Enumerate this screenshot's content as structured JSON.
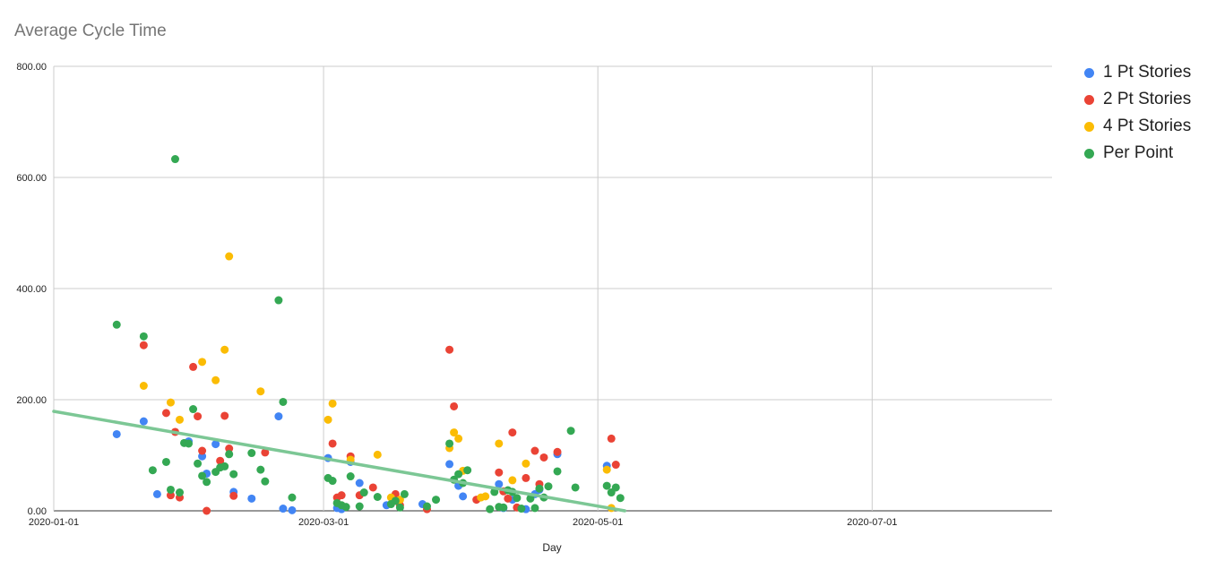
{
  "chart_data": {
    "type": "scatter",
    "title": "Average Cycle Time",
    "xlabel": "Day",
    "ylabel": "",
    "x_ticks": [
      "2020-01-01",
      "2020-03-01",
      "2020-05-01",
      "2020-07-01"
    ],
    "xlim": [
      "2020-01-01",
      "2020-08-10"
    ],
    "y_ticks": [
      "0.00",
      "200.00",
      "400.00",
      "600.00",
      "800.00"
    ],
    "ylim": [
      0,
      800
    ],
    "grid": true,
    "legend_position": "right",
    "trendline": {
      "series": "Per Point",
      "color": "#7cc795",
      "points": [
        [
          "2020-01-01",
          179
        ],
        [
          "2020-05-07",
          0
        ]
      ]
    },
    "series": [
      {
        "name": "1 Pt Stories",
        "color": "#4285f4",
        "points": [
          [
            "2020-01-15",
            138
          ],
          [
            "2020-01-21",
            161
          ],
          [
            "2020-01-24",
            30
          ],
          [
            "2020-01-31",
            125
          ],
          [
            "2020-02-03",
            98
          ],
          [
            "2020-02-04",
            67
          ],
          [
            "2020-02-06",
            120
          ],
          [
            "2020-02-10",
            34
          ],
          [
            "2020-02-14",
            22
          ],
          [
            "2020-02-20",
            170
          ],
          [
            "2020-02-21",
            4
          ],
          [
            "2020-02-23",
            1
          ],
          [
            "2020-03-02",
            95
          ],
          [
            "2020-03-04",
            5
          ],
          [
            "2020-03-05",
            3
          ],
          [
            "2020-03-07",
            88
          ],
          [
            "2020-03-09",
            50
          ],
          [
            "2020-03-15",
            10
          ],
          [
            "2020-03-23",
            12
          ],
          [
            "2020-03-29",
            84
          ],
          [
            "2020-03-31",
            45
          ],
          [
            "2020-04-01",
            26
          ],
          [
            "2020-04-09",
            48
          ],
          [
            "2020-04-10",
            5
          ],
          [
            "2020-04-12",
            20
          ],
          [
            "2020-04-15",
            3
          ],
          [
            "2020-04-17",
            30
          ],
          [
            "2020-04-18",
            38
          ],
          [
            "2020-04-22",
            102
          ],
          [
            "2020-05-03",
            81
          ]
        ]
      },
      {
        "name": "2 Pt Stories",
        "color": "#ea4335",
        "points": [
          [
            "2020-01-21",
            298
          ],
          [
            "2020-01-26",
            176
          ],
          [
            "2020-01-27",
            28
          ],
          [
            "2020-01-28",
            142
          ],
          [
            "2020-01-29",
            24
          ],
          [
            "2020-02-01",
            259
          ],
          [
            "2020-02-02",
            170
          ],
          [
            "2020-02-03",
            108
          ],
          [
            "2020-02-04",
            0
          ],
          [
            "2020-02-07",
            90
          ],
          [
            "2020-02-08",
            171
          ],
          [
            "2020-02-09",
            112
          ],
          [
            "2020-02-10",
            27
          ],
          [
            "2020-02-17",
            105
          ],
          [
            "2020-03-03",
            121
          ],
          [
            "2020-03-04",
            24
          ],
          [
            "2020-03-05",
            28
          ],
          [
            "2020-03-07",
            98
          ],
          [
            "2020-03-09",
            28
          ],
          [
            "2020-03-12",
            42
          ],
          [
            "2020-03-17",
            30
          ],
          [
            "2020-03-18",
            10
          ],
          [
            "2020-03-24",
            3
          ],
          [
            "2020-03-29",
            290
          ],
          [
            "2020-03-30",
            188
          ],
          [
            "2020-04-04",
            20
          ],
          [
            "2020-04-09",
            69
          ],
          [
            "2020-04-10",
            35
          ],
          [
            "2020-04-11",
            22
          ],
          [
            "2020-04-12",
            141
          ],
          [
            "2020-04-13",
            6
          ],
          [
            "2020-04-15",
            59
          ],
          [
            "2020-04-17",
            108
          ],
          [
            "2020-04-18",
            48
          ],
          [
            "2020-04-19",
            96
          ],
          [
            "2020-04-22",
            106
          ],
          [
            "2020-05-04",
            130
          ],
          [
            "2020-05-05",
            83
          ]
        ]
      },
      {
        "name": "4 Pt Stories",
        "color": "#fbbc04",
        "points": [
          [
            "2020-01-21",
            225
          ],
          [
            "2020-01-27",
            195
          ],
          [
            "2020-01-29",
            164
          ],
          [
            "2020-02-03",
            268
          ],
          [
            "2020-02-06",
            235
          ],
          [
            "2020-02-08",
            290
          ],
          [
            "2020-02-09",
            458
          ],
          [
            "2020-02-16",
            215
          ],
          [
            "2020-03-02",
            164
          ],
          [
            "2020-03-03",
            193
          ],
          [
            "2020-03-07",
            92
          ],
          [
            "2020-03-13",
            101
          ],
          [
            "2020-03-16",
            24
          ],
          [
            "2020-03-18",
            20
          ],
          [
            "2020-03-29",
            113
          ],
          [
            "2020-03-30",
            141
          ],
          [
            "2020-03-31",
            130
          ],
          [
            "2020-04-01",
            72
          ],
          [
            "2020-04-05",
            24
          ],
          [
            "2020-04-06",
            26
          ],
          [
            "2020-04-09",
            121
          ],
          [
            "2020-04-12",
            55
          ],
          [
            "2020-04-15",
            85
          ],
          [
            "2020-05-03",
            74
          ],
          [
            "2020-05-04",
            5
          ]
        ]
      },
      {
        "name": "Per Point",
        "color": "#34a853",
        "points": [
          [
            "2020-01-15",
            335
          ],
          [
            "2020-01-21",
            314
          ],
          [
            "2020-01-23",
            73
          ],
          [
            "2020-01-26",
            88
          ],
          [
            "2020-01-27",
            38
          ],
          [
            "2020-01-28",
            633
          ],
          [
            "2020-01-29",
            33
          ],
          [
            "2020-01-30",
            122
          ],
          [
            "2020-01-31",
            121
          ],
          [
            "2020-02-01",
            183
          ],
          [
            "2020-02-02",
            85
          ],
          [
            "2020-02-03",
            63
          ],
          [
            "2020-02-04",
            52
          ],
          [
            "2020-02-06",
            70
          ],
          [
            "2020-02-07",
            78
          ],
          [
            "2020-02-08",
            80
          ],
          [
            "2020-02-09",
            102
          ],
          [
            "2020-02-10",
            66
          ],
          [
            "2020-02-14",
            104
          ],
          [
            "2020-02-16",
            74
          ],
          [
            "2020-02-17",
            53
          ],
          [
            "2020-02-20",
            379
          ],
          [
            "2020-02-21",
            196
          ],
          [
            "2020-02-23",
            24
          ],
          [
            "2020-03-02",
            59
          ],
          [
            "2020-03-03",
            54
          ],
          [
            "2020-03-04",
            14
          ],
          [
            "2020-03-05",
            10
          ],
          [
            "2020-03-06",
            7
          ],
          [
            "2020-03-07",
            62
          ],
          [
            "2020-03-09",
            8
          ],
          [
            "2020-03-10",
            33
          ],
          [
            "2020-03-13",
            25
          ],
          [
            "2020-03-16",
            12
          ],
          [
            "2020-03-17",
            18
          ],
          [
            "2020-03-18",
            6
          ],
          [
            "2020-03-19",
            30
          ],
          [
            "2020-03-24",
            8
          ],
          [
            "2020-03-26",
            20
          ],
          [
            "2020-03-29",
            121
          ],
          [
            "2020-03-30",
            56
          ],
          [
            "2020-03-31",
            66
          ],
          [
            "2020-04-01",
            50
          ],
          [
            "2020-04-02",
            73
          ],
          [
            "2020-04-07",
            3
          ],
          [
            "2020-04-08",
            34
          ],
          [
            "2020-04-09",
            7
          ],
          [
            "2020-04-10",
            6
          ],
          [
            "2020-04-11",
            37
          ],
          [
            "2020-04-12",
            34
          ],
          [
            "2020-04-13",
            23
          ],
          [
            "2020-04-14",
            4
          ],
          [
            "2020-04-16",
            22
          ],
          [
            "2020-04-17",
            5
          ],
          [
            "2020-04-18",
            40
          ],
          [
            "2020-04-19",
            24
          ],
          [
            "2020-04-20",
            44
          ],
          [
            "2020-04-22",
            71
          ],
          [
            "2020-04-25",
            144
          ],
          [
            "2020-04-26",
            42
          ],
          [
            "2020-05-03",
            45
          ],
          [
            "2020-05-04",
            33
          ],
          [
            "2020-05-05",
            42
          ],
          [
            "2020-05-06",
            23
          ]
        ]
      }
    ]
  }
}
